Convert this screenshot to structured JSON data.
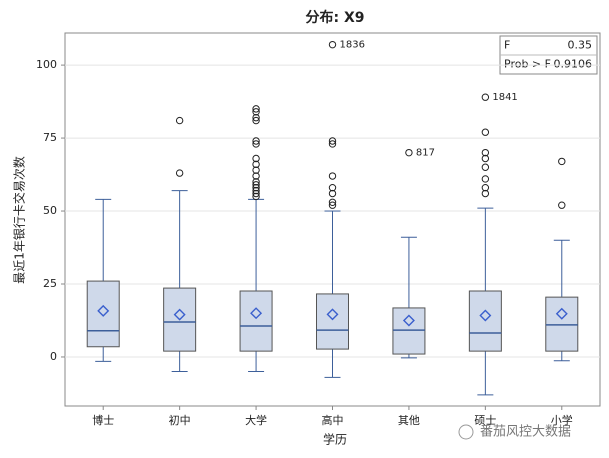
{
  "chart_data": {
    "type": "box",
    "title": "分布: X9",
    "x_label": "学历",
    "y_label": "最近1年银行卡交易次数",
    "categories": [
      "博士",
      "初中",
      "大学",
      "高中",
      "其他",
      "硕士",
      "小学"
    ],
    "boxes": [
      {
        "low": -1.5,
        "q1": 3.5,
        "median": 9,
        "q3": 26,
        "high": 54,
        "mean": 15.8,
        "outliers": []
      },
      {
        "low": -5,
        "q1": 2,
        "median": 12,
        "q3": 23.6,
        "high": 57,
        "mean": 14.5,
        "outliers": [
          81,
          63
        ]
      },
      {
        "low": -5,
        "q1": 2,
        "median": 10.6,
        "q3": 22.6,
        "high": 54,
        "mean": 15,
        "outliers": [
          85,
          84,
          82,
          81,
          74,
          73,
          68,
          66,
          64,
          62,
          60,
          59,
          58,
          57,
          56,
          55
        ]
      },
      {
        "low": -7,
        "q1": 2.7,
        "median": 9.2,
        "q3": 21.6,
        "high": 50,
        "mean": 14.6,
        "outliers": [
          {
            "value": 107,
            "label": "1836"
          },
          74,
          73,
          62,
          58,
          56,
          53,
          52
        ]
      },
      {
        "low": -0.3,
        "q1": 1,
        "median": 9.2,
        "q3": 16.8,
        "high": 41,
        "mean": 12.5,
        "outliers": [
          {
            "value": 70,
            "label": "817"
          }
        ]
      },
      {
        "low": -13,
        "q1": 2,
        "median": 8.2,
        "q3": 22.6,
        "high": 51,
        "mean": 14.2,
        "outliers": [
          {
            "value": 89,
            "label": "1841"
          },
          77,
          70,
          68,
          65,
          61,
          58,
          56
        ]
      },
      {
        "low": -1.3,
        "q1": 2,
        "median": 11,
        "q3": 20.5,
        "high": 40,
        "mean": 14.8,
        "outliers": [
          67,
          52
        ]
      }
    ],
    "box_color": "#cfd9ea",
    "line_color": "#3d5f9a",
    "ylim": [
      -16.8,
      111
    ],
    "yticks": [
      0,
      25,
      50,
      75,
      100
    ],
    "grid": true,
    "stats": [
      {
        "label": "F",
        "value": 0.35
      },
      {
        "label": "Prob > F",
        "value": 0.9106
      }
    ],
    "watermark": "番茄风控大数据"
  }
}
